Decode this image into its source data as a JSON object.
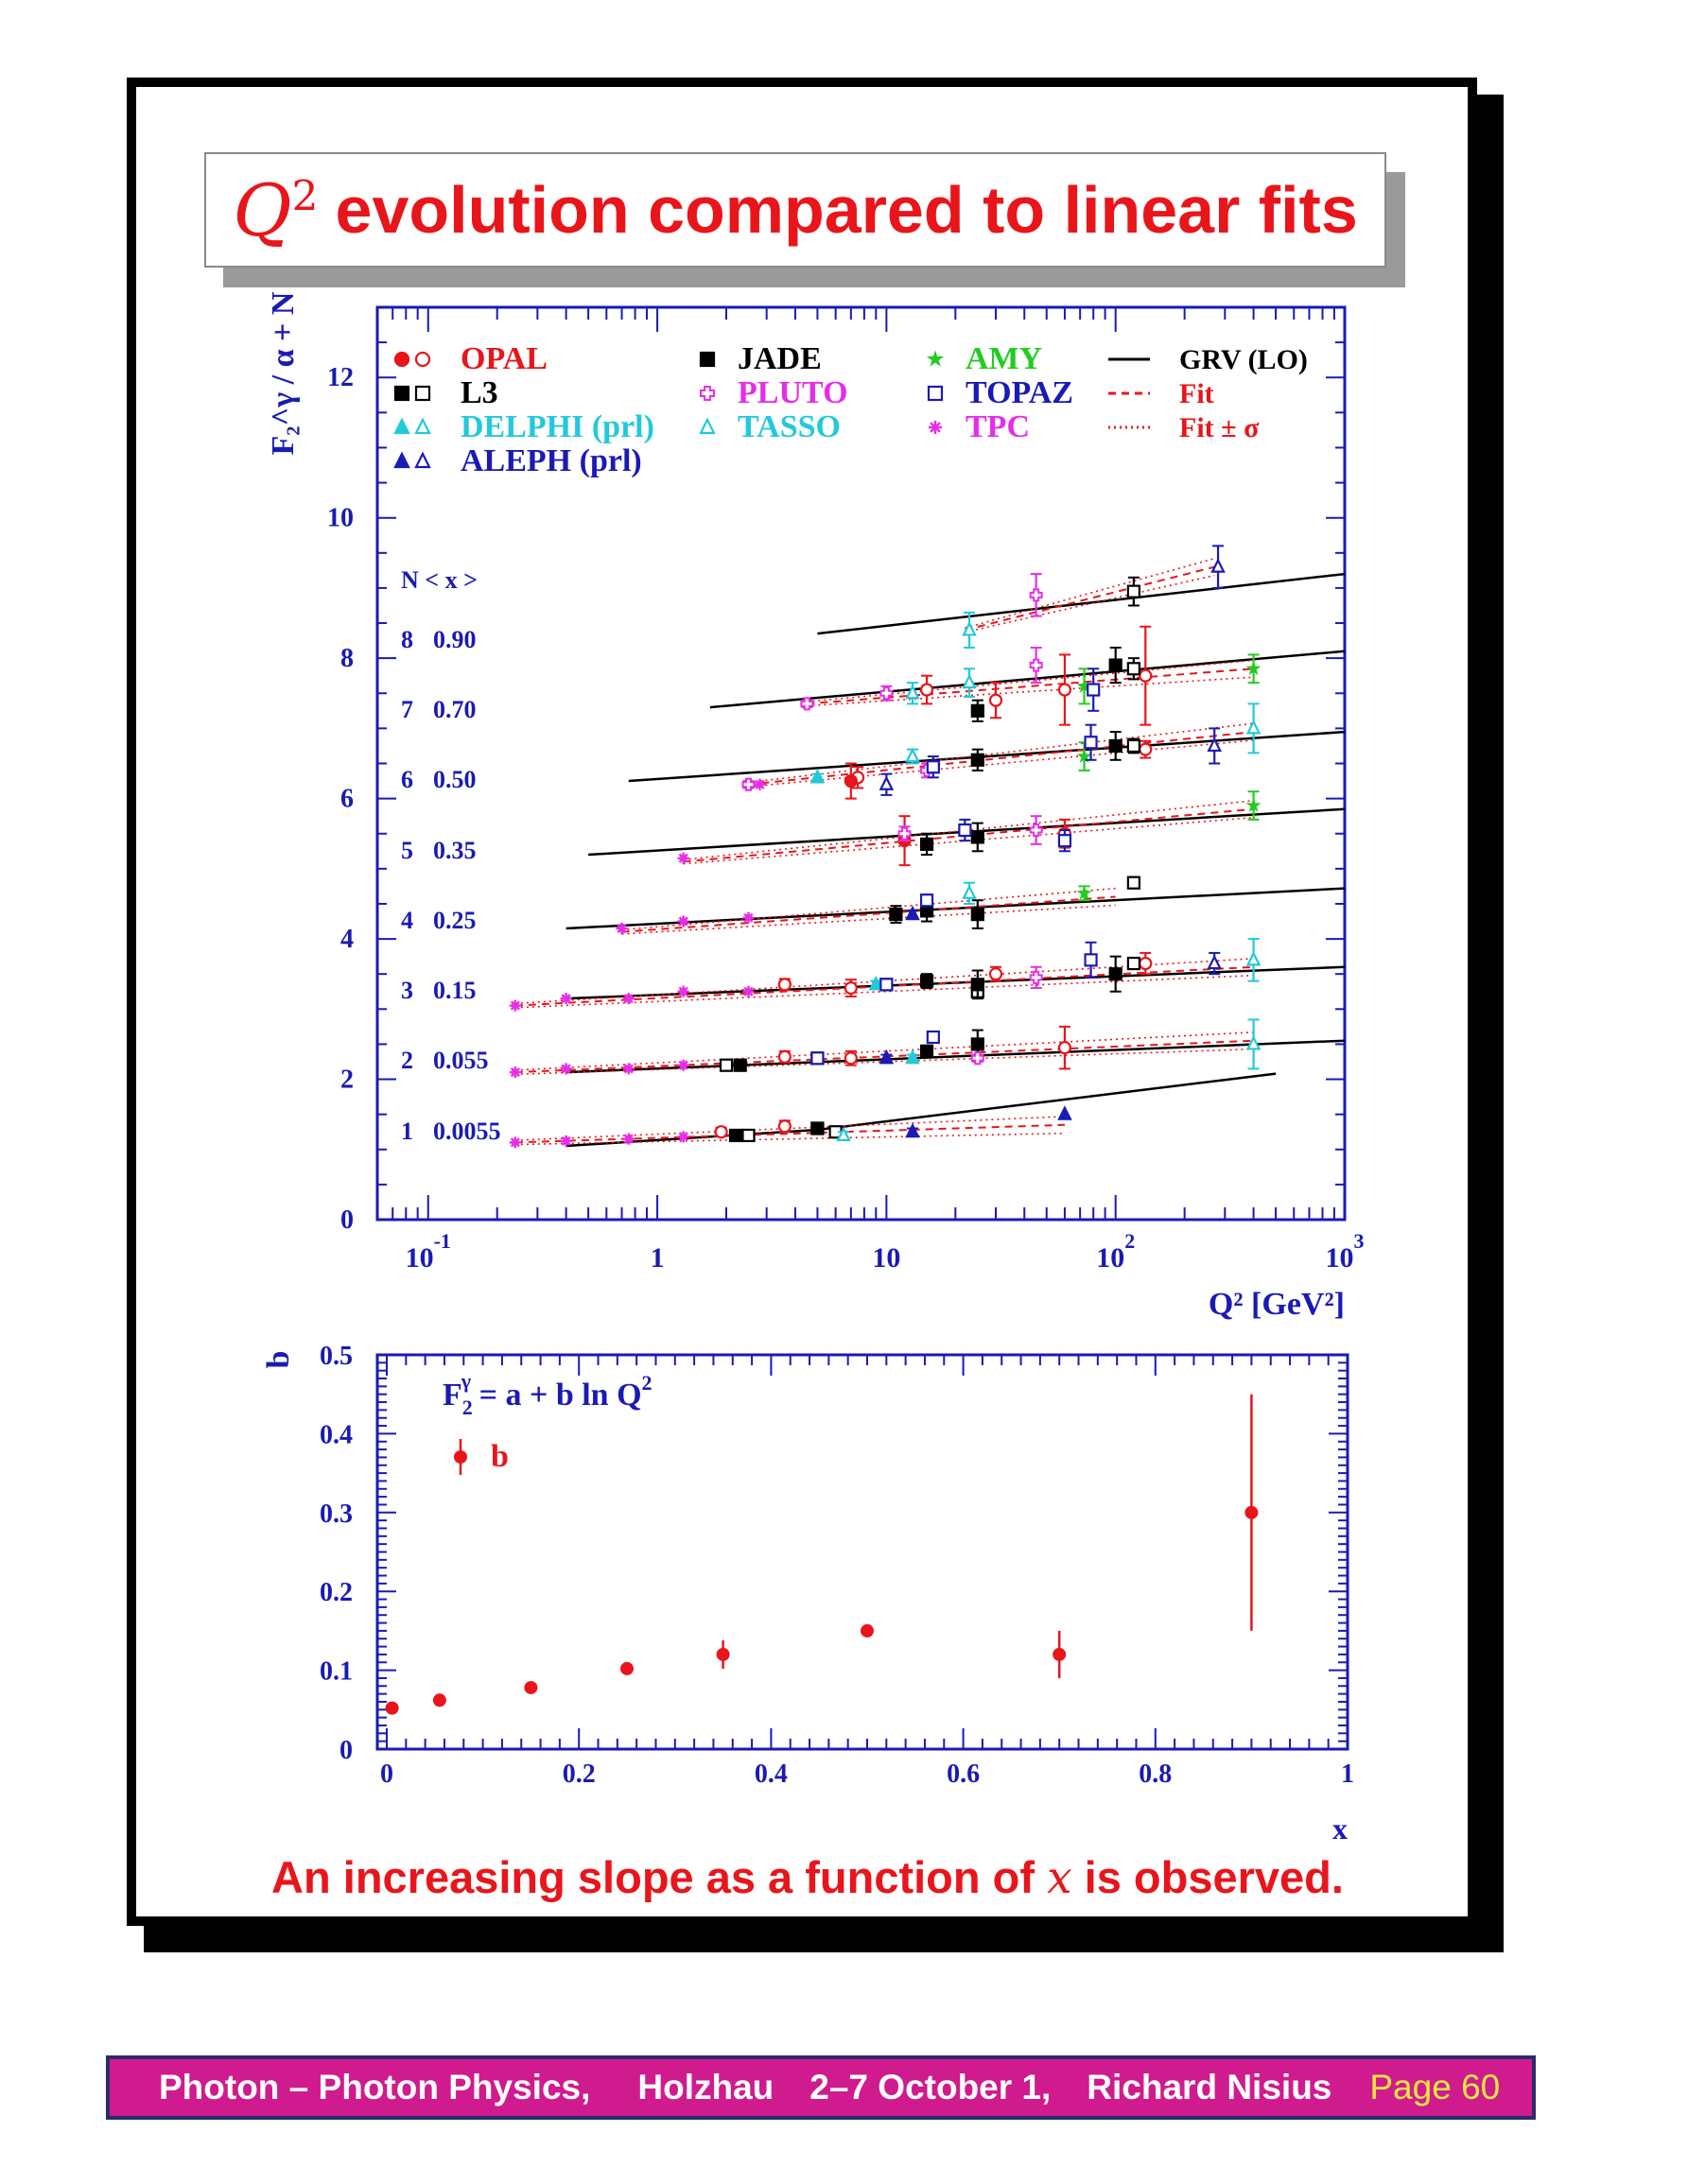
{
  "colors": {
    "axis": "#1a1ab4",
    "opal": "#e8151b",
    "l3": "#000000",
    "delphi": "#22c9d9",
    "aleph": "#1a1ab4",
    "jade": "#000000",
    "pluto": "#e62ee6",
    "tasso": "#22c9d9",
    "amy": "#22cc22",
    "topaz": "#1a1ab4",
    "tpc": "#e62ee6",
    "grv": "#000000",
    "fit": "#e8151b",
    "title": "#e8151b",
    "footer_bg": "#cf1b8e",
    "footer_page": "#f5e642"
  },
  "title": {
    "q": "Q",
    "q_sup": "2",
    "text": "evolution compared to linear fits"
  },
  "conclusion": {
    "before": "An increasing slope as a function of ",
    "x": "x",
    "after": " is observed."
  },
  "footer": {
    "part1": "Photon – Photon Physics,",
    "part2": "Holzhau",
    "part3": "2–7 October 1,",
    "part4": "Richard Nisius",
    "page": "Page 60"
  },
  "chart_data": [
    {
      "type": "scatter",
      "scale": "log-x",
      "ylabel": "F₂^γ / α + N",
      "xlabel": "Q² [GeV²]",
      "xlim": [
        0.06,
        1000
      ],
      "ylim": [
        0,
        13
      ],
      "xticks": [
        {
          "v": 0.1,
          "label": "10",
          "sup": "-1"
        },
        {
          "v": 1,
          "label": "1",
          "sup": ""
        },
        {
          "v": 10,
          "label": "10",
          "sup": ""
        },
        {
          "v": 100,
          "label": "10",
          "sup": "2"
        },
        {
          "v": 1000,
          "label": "10",
          "sup": "3"
        }
      ],
      "yticks": [
        0,
        2,
        4,
        6,
        8,
        10,
        12
      ],
      "legend": [
        {
          "label": "OPAL",
          "marker": "circle-pair",
          "color_key": "opal"
        },
        {
          "label": "L3",
          "marker": "square-pair",
          "color_key": "l3"
        },
        {
          "label": "DELPHI (prl)",
          "marker": "triangle-pair",
          "color_key": "delphi"
        },
        {
          "label": "ALEPH (prl)",
          "marker": "triangle-pair",
          "color_key": "aleph"
        },
        {
          "label": "JADE",
          "marker": "square",
          "color_key": "jade"
        },
        {
          "label": "PLUTO",
          "marker": "cross-open",
          "color_key": "pluto"
        },
        {
          "label": "TASSO",
          "marker": "triangle-open",
          "color_key": "tasso"
        },
        {
          "label": "AMY",
          "marker": "star",
          "color_key": "amy"
        },
        {
          "label": "TOPAZ",
          "marker": "square-open",
          "color_key": "topaz"
        },
        {
          "label": "TPC",
          "marker": "asterisk",
          "color_key": "tpc"
        },
        {
          "label": "GRV (LO)",
          "marker": "line-solid",
          "color_key": "grv"
        },
        {
          "label": "Fit",
          "marker": "line-dashed",
          "color_key": "fit"
        },
        {
          "label": "Fit ± σ",
          "marker": "line-dotted",
          "color_key": "fit"
        }
      ],
      "bin_header": "N  < x >",
      "bins": [
        {
          "N": "1",
          "x": "0.0055",
          "grv": [
            [
              0.4,
              1.05
            ],
            [
              5,
              1.28
            ],
            [
              500,
              2.08
            ]
          ],
          "fit": [
            [
              0.24,
              1.1
            ],
            [
              60,
              1.35
            ]
          ]
        },
        {
          "N": "2",
          "x": "0.055",
          "grv": [
            [
              0.4,
              2.1
            ],
            [
              1000,
              2.55
            ]
          ],
          "fit": [
            [
              0.24,
              2.1
            ],
            [
              400,
              2.55
            ]
          ]
        },
        {
          "N": "3",
          "x": "0.15",
          "grv": [
            [
              0.4,
              3.15
            ],
            [
              1000,
              3.6
            ]
          ],
          "fit": [
            [
              0.24,
              3.05
            ],
            [
              400,
              3.6
            ]
          ]
        },
        {
          "N": "4",
          "x": "0.25",
          "grv": [
            [
              0.4,
              4.15
            ],
            [
              1000,
              4.72
            ]
          ],
          "fit": [
            [
              0.7,
              4.1
            ],
            [
              100,
              4.6
            ]
          ]
        },
        {
          "N": "5",
          "x": "0.35",
          "grv": [
            [
              0.5,
              5.2
            ],
            [
              1000,
              5.85
            ]
          ],
          "fit": [
            [
              1.3,
              5.1
            ],
            [
              400,
              5.85
            ]
          ]
        },
        {
          "N": "6",
          "x": "0.50",
          "grv": [
            [
              0.75,
              6.25
            ],
            [
              1000,
              6.95
            ]
          ],
          "fit": [
            [
              2.5,
              6.2
            ],
            [
              400,
              6.95
            ]
          ]
        },
        {
          "N": "7",
          "x": "0.70",
          "grv": [
            [
              1.7,
              7.3
            ],
            [
              1000,
              8.1
            ]
          ],
          "fit": [
            [
              4.5,
              7.35
            ],
            [
              400,
              7.85
            ]
          ]
        },
        {
          "N": "8",
          "x": "0.90",
          "grv": [
            [
              5,
              8.35
            ],
            [
              1000,
              9.2
            ]
          ],
          "fit": [
            [
              22,
              8.4
            ],
            [
              270,
              9.3
            ]
          ]
        }
      ],
      "series": [
        {
          "name": "OPAL",
          "color_key": "opal",
          "marker": "circle-open",
          "points": [
            [
              1.9,
              1.25,
              0.06
            ],
            [
              3.6,
              1.33,
              0.08
            ],
            [
              3.6,
              2.32,
              0.08
            ],
            [
              3.6,
              3.35,
              0.08
            ],
            [
              7,
              2.3,
              0.1
            ],
            [
              7,
              3.3,
              0.12
            ],
            [
              7.5,
              6.3,
              0.15
            ],
            [
              15,
              7.55,
              0.2
            ],
            [
              30,
              3.5,
              0.1
            ],
            [
              30,
              7.4,
              0.25
            ],
            [
              60,
              2.45,
              0.3
            ],
            [
              60,
              5.5,
              0.2
            ],
            [
              60,
              7.55,
              0.5
            ],
            [
              135,
              3.65,
              0.15
            ],
            [
              135,
              6.7,
              0.12
            ],
            [
              135,
              7.75,
              0.7
            ]
          ]
        },
        {
          "name": "OPAL",
          "color_key": "opal",
          "marker": "circle",
          "points": [
            [
              2.4,
              1.2,
              0.06
            ],
            [
              7,
              6.25,
              0.25
            ],
            [
              12,
              5.4,
              0.35
            ]
          ]
        },
        {
          "name": "L3",
          "color_key": "l3",
          "marker": "square-open",
          "points": [
            [
              2,
              2.2,
              0.05
            ],
            [
              2.5,
              1.2,
              0.05
            ],
            [
              5,
              1.3,
              0.06
            ],
            [
              5,
              2.3,
              0.06
            ],
            [
              6,
              1.25,
              0.05
            ],
            [
              10,
              3.35,
              0.05
            ],
            [
              25,
              3.25,
              0.08
            ],
            [
              120,
              3.65,
              0.08
            ],
            [
              120,
              4.8,
              0.08
            ],
            [
              120,
              6.75,
              0.1
            ],
            [
              120,
              7.85,
              0.15
            ],
            [
              120,
              8.95,
              0.2
            ]
          ]
        },
        {
          "name": "L3",
          "color_key": "l3",
          "marker": "square",
          "points": [
            [
              2.3,
              2.2,
              0.05
            ],
            [
              2.2,
              1.2,
              0.05
            ],
            [
              5,
              1.3,
              0.06
            ],
            [
              15,
              4.4,
              0.15
            ],
            [
              25,
              4.35,
              0.2
            ],
            [
              25,
              5.45,
              0.2
            ],
            [
              25,
              6.55,
              0.15
            ]
          ]
        },
        {
          "name": "JADE",
          "color_key": "jade",
          "marker": "square",
          "points": [
            [
              11,
              4.35,
              0.12
            ],
            [
              15,
              2.4,
              0.08
            ],
            [
              15,
              3.4,
              0.1
            ],
            [
              15,
              5.35,
              0.15
            ],
            [
              25,
              2.5,
              0.2
            ],
            [
              25,
              3.35,
              0.2
            ],
            [
              25,
              7.25,
              0.15
            ],
            [
              100,
              3.5,
              0.25
            ],
            [
              100,
              6.75,
              0.2
            ],
            [
              100,
              7.9,
              0.25
            ]
          ]
        },
        {
          "name": "PLUTO",
          "color_key": "pluto",
          "marker": "cross-open",
          "points": [
            [
              2.5,
              6.2,
              0.05
            ],
            [
              4.5,
              7.35,
              0.05
            ],
            [
              10,
              7.5,
              0.1
            ],
            [
              12,
              5.5,
              0.1
            ],
            [
              15,
              6.4,
              0.1
            ],
            [
              25,
              2.3,
              0.05
            ],
            [
              45,
              3.45,
              0.15
            ],
            [
              45,
              5.55,
              0.2
            ],
            [
              45,
              7.9,
              0.25
            ],
            [
              45,
              8.9,
              0.3
            ]
          ]
        },
        {
          "name": "TASSO",
          "color_key": "tasso",
          "marker": "triangle-open",
          "points": [
            [
              6.5,
              1.2,
              0.05
            ],
            [
              13,
              7.5,
              0.15
            ],
            [
              13,
              6.6,
              0.1
            ],
            [
              23,
              4.65,
              0.15
            ],
            [
              23,
              8.4,
              0.25
            ],
            [
              23,
              7.65,
              0.2
            ],
            [
              400,
              2.5,
              0.35
            ],
            [
              400,
              3.7,
              0.3
            ],
            [
              400,
              7.0,
              0.35
            ]
          ]
        },
        {
          "name": "DELPHI (prl)",
          "color_key": "delphi",
          "marker": "triangle",
          "points": [
            [
              5,
              6.3,
              0.05
            ],
            [
              9,
              3.35,
              0.05
            ],
            [
              13,
              2.3,
              0.05
            ]
          ]
        },
        {
          "name": "ALEPH (prl)",
          "color_key": "aleph",
          "marker": "triangle",
          "points": [
            [
              10,
              2.3,
              0.05
            ],
            [
              13,
              1.25,
              0.05
            ],
            [
              13,
              4.35,
              0.05
            ],
            [
              60,
              1.5,
              0.04
            ]
          ]
        },
        {
          "name": "ALEPH (prl)",
          "color_key": "aleph",
          "marker": "triangle-open",
          "points": [
            [
              10,
              6.2,
              0.15
            ],
            [
              270,
              3.65,
              0.15
            ],
            [
              270,
              6.75,
              0.25
            ],
            [
              280,
              9.3,
              0.3
            ]
          ]
        },
        {
          "name": "AMY",
          "color_key": "amy",
          "marker": "star",
          "points": [
            [
              73,
              4.65,
              0.1
            ],
            [
              73,
              6.6,
              0.2
            ],
            [
              73,
              7.6,
              0.25
            ],
            [
              400,
              5.9,
              0.2
            ],
            [
              400,
              7.85,
              0.2
            ]
          ]
        },
        {
          "name": "TOPAZ",
          "color_key": "topaz",
          "marker": "square-open",
          "points": [
            [
              5,
              2.3,
              0.05
            ],
            [
              10,
              3.35,
              0.05
            ],
            [
              15,
              4.55,
              0.08
            ],
            [
              16,
              2.6,
              0.08
            ],
            [
              16,
              6.45,
              0.15
            ],
            [
              22,
              5.55,
              0.15
            ],
            [
              60,
              5.4,
              0.15
            ],
            [
              78,
              3.7,
              0.25
            ],
            [
              78,
              6.8,
              0.25
            ],
            [
              80,
              7.55,
              0.3
            ]
          ]
        },
        {
          "name": "TPC",
          "color_key": "tpc",
          "marker": "asterisk",
          "points": [
            [
              0.24,
              1.1,
              0.04
            ],
            [
              0.4,
              1.12,
              0.04
            ],
            [
              0.75,
              1.15,
              0.04
            ],
            [
              1.3,
              1.18,
              0.04
            ],
            [
              0.24,
              2.1,
              0.04
            ],
            [
              0.4,
              2.15,
              0.04
            ],
            [
              0.75,
              2.15,
              0.04
            ],
            [
              1.3,
              2.2,
              0.04
            ],
            [
              0.24,
              3.05,
              0.04
            ],
            [
              0.4,
              3.15,
              0.04
            ],
            [
              0.75,
              3.15,
              0.04
            ],
            [
              1.3,
              3.25,
              0.04
            ],
            [
              2.5,
              3.25,
              0.04
            ],
            [
              0.7,
              4.15,
              0.04
            ],
            [
              1.3,
              4.25,
              0.04
            ],
            [
              2.5,
              4.3,
              0.04
            ],
            [
              1.3,
              5.15,
              0.04
            ],
            [
              2.8,
              6.2,
              0.04
            ]
          ]
        }
      ]
    },
    {
      "type": "scatter",
      "xlabel": "x",
      "ylabel": "b",
      "xlim": [
        0,
        1
      ],
      "ylim": [
        0,
        0.5
      ],
      "xticks": [
        0,
        0.2,
        0.4,
        0.6,
        0.8,
        1
      ],
      "yticks": [
        0,
        0.1,
        0.2,
        0.3,
        0.4,
        0.5
      ],
      "formula": {
        "f": "F",
        "sub": "2",
        "sup": "γ",
        "rest": " = a + b ln Q",
        "rest_sup": "2"
      },
      "legend_label": "b",
      "series": [
        {
          "name": "b",
          "color_key": "opal",
          "x": [
            0.0055,
            0.055,
            0.15,
            0.25,
            0.35,
            0.5,
            0.7,
            0.9
          ],
          "y": [
            0.052,
            0.062,
            0.078,
            0.102,
            0.12,
            0.15,
            0.12,
            0.3
          ],
          "err": [
            0.004,
            0.004,
            0.005,
            0.006,
            0.018,
            0.008,
            0.03,
            0.15
          ]
        }
      ]
    }
  ]
}
